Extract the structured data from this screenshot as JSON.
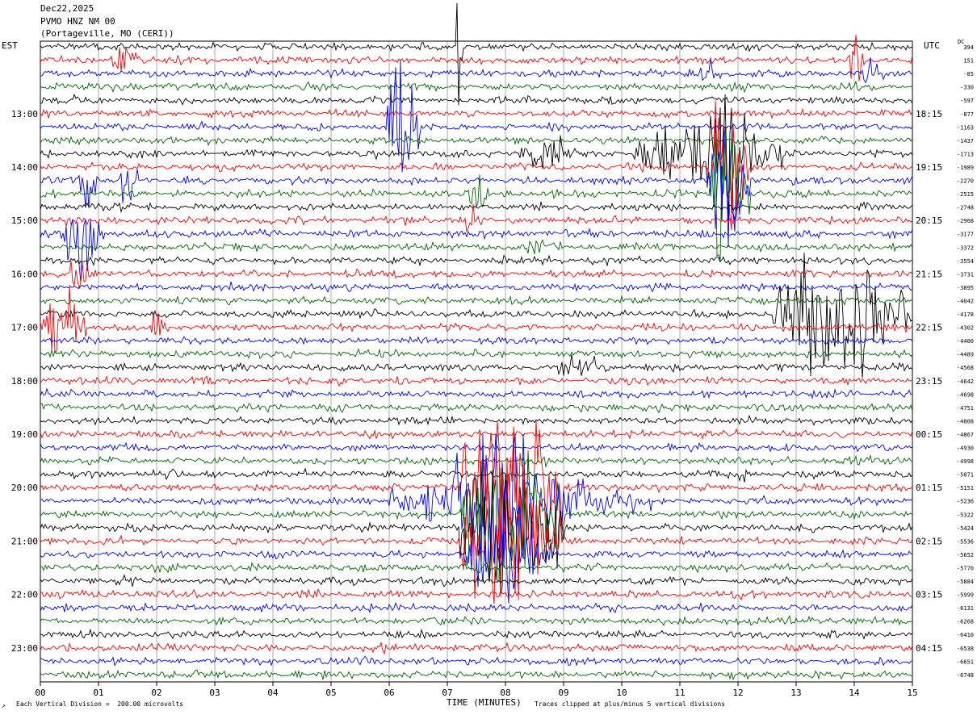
{
  "header": {
    "date": "Dec22,2025",
    "station": "PVMO HNZ NM 00",
    "location": "(Portageville, MO (CERI))"
  },
  "axes": {
    "left_tz": "EST",
    "right_tz": "UTC",
    "dc_label": "DC",
    "xlabel": "TIME (MINUTES)"
  },
  "footer": {
    "mark": "↗",
    "scale_note": "Each Vertical Division =  200.00 microvolts",
    "clip_note": "Traces clipped at plus/minus 5 vertical divisions"
  },
  "colors": {
    "trace_cycle": [
      "#000000",
      "#ff0000",
      "#0000ff",
      "#006600"
    ],
    "grid": "#000000"
  },
  "chart_data": {
    "type": "helicorder",
    "x_ticks": [
      "00",
      "01",
      "02",
      "03",
      "04",
      "05",
      "06",
      "07",
      "08",
      "09",
      "10",
      "11",
      "12",
      "13",
      "14",
      "15"
    ],
    "xlim": [
      0,
      15
    ],
    "left_hour_labels": [
      "13:00",
      "14:00",
      "15:00",
      "16:00",
      "17:00",
      "18:00",
      "19:00",
      "20:00",
      "21:00",
      "22:00",
      "23:00"
    ],
    "right_hour_labels": [
      "18:15",
      "19:15",
      "20:15",
      "21:15",
      "22:15",
      "23:15",
      "00:15",
      "01:15",
      "02:15",
      "03:15",
      "04:15"
    ],
    "dc_offsets": [
      "394",
      "151",
      "-85",
      "-330",
      "-597",
      "-877",
      "-1163",
      "-1437",
      "-1713",
      "-1989",
      "-2270",
      "-2515",
      "-2748",
      "-2968",
      "-3177",
      "-3372",
      "-3554",
      "-3731",
      "-3895",
      "-4042",
      "-4178",
      "-4302",
      "-4400",
      "-4489",
      "-4568",
      "-4642",
      "-4698",
      "-4751",
      "-4808",
      "-4867",
      "-4930",
      "-4998",
      "-5071",
      "-5151",
      "-5236",
      "-5322",
      "-5424",
      "-5536",
      "-5652",
      "-5770",
      "-5884",
      "-5999",
      "-6131",
      "-6268",
      "-6410",
      "-6538",
      "-6651",
      "-6748"
    ],
    "trace_count": 48,
    "first_hour_row": 5,
    "rows_per_hour": 4,
    "events": [
      {
        "row": 0,
        "x": [
          7.15,
          7.25
        ],
        "amp": 4.0
      },
      {
        "row": 1,
        "x": [
          1.2,
          1.8
        ],
        "amp": 1.0
      },
      {
        "row": 1,
        "x": [
          13.9,
          14.2
        ],
        "amp": 1.3
      },
      {
        "row": 2,
        "x": [
          11.3,
          11.7
        ],
        "amp": 0.8
      },
      {
        "row": 2,
        "x": [
          14.1,
          14.5
        ],
        "amp": 0.7
      },
      {
        "row": 6,
        "x": [
          5.95,
          6.55
        ],
        "amp": 4.0
      },
      {
        "row": 8,
        "x": [
          10.2,
          12.8
        ],
        "amp": 2.0
      },
      {
        "row": 8,
        "x": [
          11.4,
          12.3
        ],
        "amp": 5.0
      },
      {
        "row": 8,
        "x": [
          8.2,
          9.2
        ],
        "amp": 1.4
      },
      {
        "row": 9,
        "x": [
          11.5,
          12.2
        ],
        "amp": 5.0
      },
      {
        "row": 10,
        "x": [
          0.5,
          1.0
        ],
        "amp": 1.8
      },
      {
        "row": 10,
        "x": [
          1.35,
          1.7
        ],
        "amp": 1.5
      },
      {
        "row": 10,
        "x": [
          11.5,
          12.2
        ],
        "amp": 5.0
      },
      {
        "row": 11,
        "x": [
          11.5,
          12.2
        ],
        "amp": 4.5
      },
      {
        "row": 11,
        "x": [
          7.3,
          7.8
        ],
        "amp": 1.0
      },
      {
        "row": 13,
        "x": [
          7.2,
          7.6
        ],
        "amp": 1.0
      },
      {
        "row": 14,
        "x": [
          0.4,
          1.1
        ],
        "amp": 2.5
      },
      {
        "row": 15,
        "x": [
          8.2,
          9.0
        ],
        "amp": 0.8
      },
      {
        "row": 17,
        "x": [
          0.5,
          0.9
        ],
        "amp": 1.2
      },
      {
        "row": 20,
        "x": [
          12.6,
          15.0
        ],
        "amp": 3.5
      },
      {
        "row": 21,
        "x": [
          0.0,
          0.8
        ],
        "amp": 2.5
      },
      {
        "row": 21,
        "x": [
          1.9,
          2.2
        ],
        "amp": 1.2
      },
      {
        "row": 24,
        "x": [
          8.9,
          9.8
        ],
        "amp": 0.8
      },
      {
        "row": 33,
        "x": [
          7.2,
          9.0
        ],
        "amp": 5.0
      },
      {
        "row": 34,
        "x": [
          6.0,
          10.5
        ],
        "amp": 1.5
      },
      {
        "row": 34,
        "x": [
          7.0,
          9.0
        ],
        "amp": 5.0
      },
      {
        "row": 35,
        "x": [
          7.2,
          9.0
        ],
        "amp": 5.0
      },
      {
        "row": 36,
        "x": [
          7.2,
          9.0
        ],
        "amp": 5.0
      },
      {
        "row": 37,
        "x": [
          7.2,
          9.0
        ],
        "amp": 5.0
      },
      {
        "row": 38,
        "x": [
          7.3,
          8.8
        ],
        "amp": 3.0
      },
      {
        "row": 32,
        "x": [
          12.0,
          12.3
        ],
        "amp": 0.8
      }
    ]
  }
}
